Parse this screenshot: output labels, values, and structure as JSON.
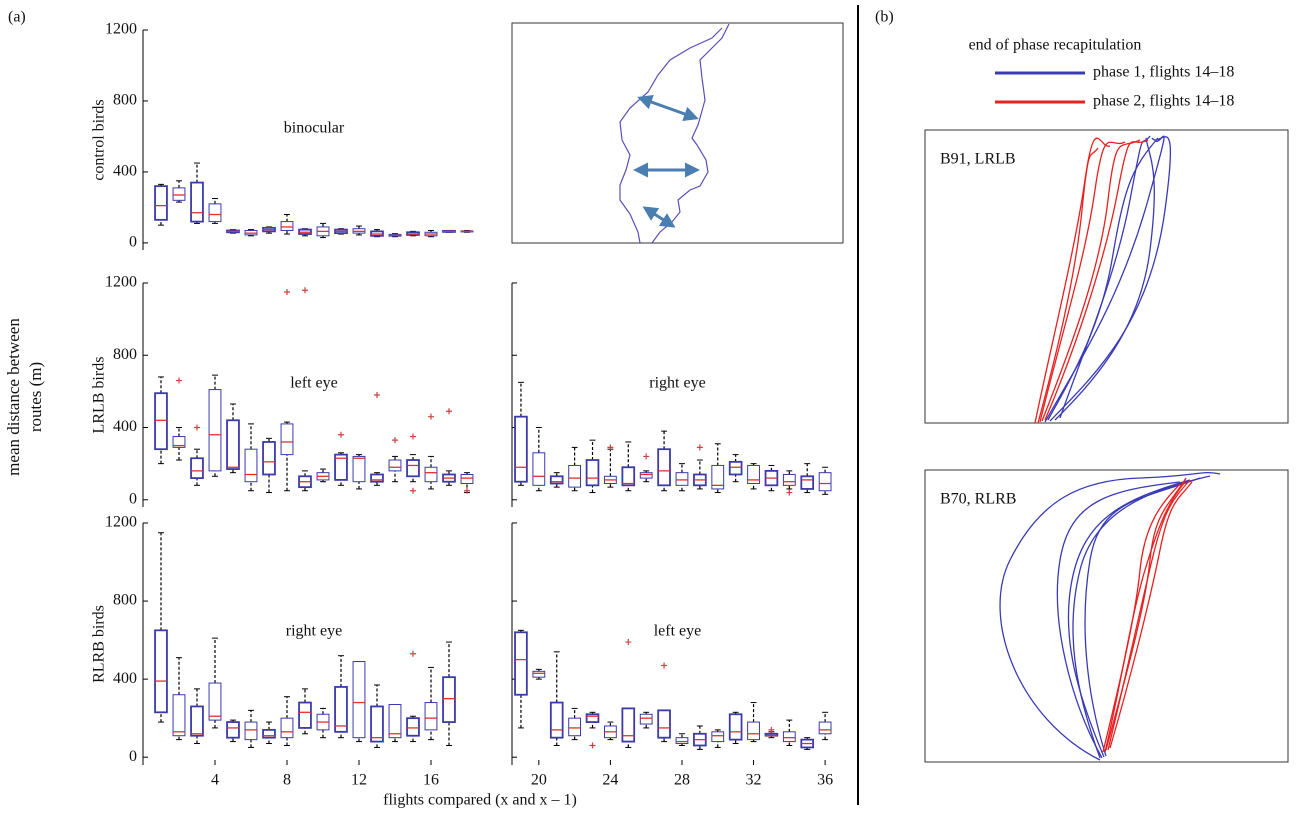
{
  "panel_a_label": "(a)",
  "panel_b_label": "(b)",
  "ylabel": "mean distance between routes (m)",
  "xlabel": "flights compared (x and x – 1)",
  "chart_data": [
    {
      "type": "box",
      "ylabel": "control birds",
      "subtitle": "binocular",
      "x": [
        1,
        2,
        3,
        4,
        5,
        6,
        7,
        8,
        9,
        10,
        11,
        12,
        13,
        14,
        15,
        16,
        17,
        18
      ],
      "whislo": [
        100,
        230,
        110,
        110,
        55,
        40,
        55,
        50,
        40,
        30,
        50,
        45,
        35,
        35,
        40,
        35,
        60,
        60
      ],
      "q1": [
        130,
        240,
        120,
        120,
        60,
        45,
        65,
        70,
        50,
        40,
        55,
        55,
        40,
        38,
        45,
        40,
        62,
        62
      ],
      "med": [
        210,
        270,
        170,
        160,
        65,
        55,
        75,
        90,
        60,
        65,
        65,
        65,
        50,
        42,
        50,
        50,
        65,
        65
      ],
      "q3": [
        320,
        310,
        340,
        220,
        70,
        70,
        85,
        120,
        75,
        90,
        75,
        80,
        65,
        48,
        60,
        60,
        68,
        68
      ],
      "whishi": [
        330,
        350,
        450,
        250,
        75,
        75,
        90,
        160,
        80,
        110,
        80,
        95,
        75,
        52,
        65,
        70,
        70,
        70
      ],
      "fliers": {
        "x": [],
        "values": []
      },
      "xlim": [
        0,
        19
      ],
      "ylim": [
        -40,
        1200
      ],
      "yticks": [
        0,
        400,
        800,
        1200
      ],
      "show_ytick_labels": true,
      "box_color": "#3a3aaa",
      "median_color": "#e03030",
      "whisker_color": "#000000",
      "flier_color": "#d04040"
    },
    {
      "type": "box",
      "ylabel": "LRLB birds",
      "subtitle": "left eye",
      "x": [
        1,
        2,
        3,
        4,
        5,
        6,
        7,
        8,
        9,
        10,
        11,
        12,
        13,
        14,
        15,
        16,
        17,
        18
      ],
      "whislo": [
        200,
        220,
        80,
        130,
        150,
        50,
        40,
        50,
        50,
        100,
        80,
        60,
        80,
        100,
        100,
        60,
        80,
        40
      ],
      "q1": [
        280,
        290,
        120,
        160,
        170,
        100,
        140,
        250,
        70,
        110,
        110,
        100,
        100,
        160,
        130,
        100,
        100,
        90
      ],
      "med": [
        440,
        300,
        160,
        360,
        180,
        140,
        210,
        320,
        100,
        130,
        230,
        230,
        110,
        180,
        190,
        150,
        120,
        120
      ],
      "q3": [
        590,
        350,
        230,
        610,
        440,
        280,
        320,
        420,
        130,
        150,
        250,
        240,
        140,
        220,
        220,
        180,
        140,
        140
      ],
      "whishi": [
        680,
        400,
        280,
        690,
        530,
        420,
        340,
        430,
        160,
        170,
        260,
        250,
        150,
        240,
        250,
        240,
        160,
        150
      ],
      "fliers": {
        "x": [
          3,
          2,
          8,
          9,
          11,
          13,
          14,
          15,
          15,
          16,
          17,
          18
        ],
        "values": [
          400,
          660,
          1150,
          1160,
          360,
          580,
          330,
          350,
          50,
          460,
          490,
          50
        ]
      },
      "xlim": [
        0,
        19
      ],
      "ylim": [
        -40,
        1200
      ],
      "yticks": [
        0,
        400,
        800,
        1200
      ],
      "show_ytick_labels": true,
      "box_color": "#3a3aaa",
      "median_color": "#e03030",
      "whisker_color": "#000000",
      "flier_color": "#d04040"
    },
    {
      "type": "box",
      "subtitle": "right eye",
      "x": [
        19,
        20,
        21,
        22,
        23,
        24,
        25,
        26,
        27,
        28,
        29,
        30,
        31,
        32,
        33,
        34,
        35,
        36
      ],
      "whislo": [
        80,
        50,
        70,
        50,
        40,
        70,
        50,
        100,
        50,
        50,
        60,
        40,
        100,
        60,
        50,
        60,
        40,
        30
      ],
      "q1": [
        100,
        80,
        90,
        70,
        80,
        90,
        80,
        120,
        80,
        80,
        80,
        60,
        140,
        90,
        80,
        80,
        60,
        50
      ],
      "med": [
        180,
        130,
        100,
        120,
        120,
        110,
        90,
        140,
        160,
        110,
        110,
        80,
        180,
        110,
        120,
        100,
        110,
        90
      ],
      "q3": [
        460,
        260,
        130,
        190,
        220,
        130,
        180,
        150,
        280,
        150,
        140,
        190,
        210,
        190,
        160,
        140,
        130,
        150
      ],
      "whishi": [
        650,
        400,
        150,
        290,
        330,
        280,
        320,
        160,
        380,
        200,
        220,
        310,
        250,
        200,
        190,
        160,
        200,
        180
      ],
      "fliers": {
        "x": [
          24,
          26,
          29,
          34
        ],
        "values": [
          290,
          240,
          290,
          40
        ]
      },
      "xlim": [
        18.5,
        37
      ],
      "ylim": [
        -40,
        1200
      ],
      "yticks": [
        0,
        400,
        800,
        1200
      ],
      "show_ytick_labels": false,
      "box_color": "#3a3aaa",
      "median_color": "#e03030",
      "whisker_color": "#000000",
      "flier_color": "#d04040"
    },
    {
      "type": "box",
      "ylabel": "RLRB birds",
      "subtitle": "right eye",
      "x": [
        1,
        2,
        3,
        4,
        5,
        6,
        7,
        8,
        9,
        10,
        11,
        12,
        13,
        14,
        15,
        16,
        17
      ],
      "whislo": [
        180,
        90,
        70,
        150,
        80,
        50,
        70,
        60,
        120,
        100,
        100,
        80,
        50,
        80,
        80,
        90,
        60
      ],
      "q1": [
        230,
        110,
        110,
        190,
        100,
        90,
        100,
        100,
        150,
        140,
        130,
        100,
        80,
        100,
        110,
        140,
        180
      ],
      "med": [
        390,
        130,
        120,
        210,
        150,
        140,
        110,
        130,
        230,
        180,
        160,
        280,
        100,
        120,
        150,
        200,
        300
      ],
      "q3": [
        650,
        320,
        260,
        380,
        180,
        180,
        140,
        200,
        280,
        220,
        360,
        490,
        260,
        270,
        200,
        280,
        410
      ],
      "whishi": [
        1150,
        510,
        350,
        610,
        190,
        240,
        180,
        310,
        350,
        250,
        520,
        490,
        370,
        270,
        210,
        460,
        590
      ],
      "fliers": {
        "x": [
          15
        ],
        "values": [
          530
        ]
      },
      "xlim": [
        0,
        19
      ],
      "ylim": [
        -40,
        1200
      ],
      "yticks": [
        0,
        400,
        800,
        1200
      ],
      "show_ytick_labels": true,
      "xticks": [
        4,
        8,
        12,
        16
      ],
      "box_color": "#3a3aaa",
      "median_color": "#e03030",
      "whisker_color": "#000000",
      "flier_color": "#d04040"
    },
    {
      "type": "box",
      "subtitle": "left eye",
      "x": [
        19,
        20,
        21,
        22,
        23,
        24,
        25,
        26,
        27,
        28,
        29,
        30,
        31,
        32,
        33,
        34,
        35,
        36
      ],
      "whislo": [
        150,
        400,
        60,
        90,
        150,
        90,
        50,
        150,
        80,
        60,
        40,
        50,
        70,
        80,
        100,
        60,
        40,
        90
      ],
      "q1": [
        320,
        410,
        100,
        110,
        180,
        100,
        80,
        170,
        100,
        70,
        60,
        80,
        90,
        90,
        110,
        80,
        50,
        120
      ],
      "med": [
        500,
        430,
        140,
        150,
        210,
        130,
        110,
        200,
        150,
        80,
        90,
        110,
        130,
        120,
        110,
        100,
        70,
        140
      ],
      "q3": [
        640,
        440,
        280,
        200,
        220,
        160,
        250,
        220,
        240,
        100,
        120,
        130,
        220,
        180,
        120,
        130,
        90,
        180
      ],
      "whishi": [
        650,
        450,
        540,
        250,
        230,
        180,
        250,
        230,
        240,
        120,
        160,
        140,
        230,
        280,
        130,
        190,
        100,
        230
      ],
      "fliers": {
        "x": [
          23,
          25,
          27,
          33
        ],
        "values": [
          60,
          590,
          470,
          140
        ]
      },
      "xlim": [
        18.5,
        37
      ],
      "ylim": [
        -40,
        1200
      ],
      "yticks": [
        0,
        400,
        800,
        1200
      ],
      "show_ytick_labels": false,
      "xticks": [
        20,
        24,
        28,
        32,
        36
      ],
      "box_color": "#3a3aaa",
      "median_color": "#e03030",
      "whisker_color": "#000000",
      "flier_color": "#d04040"
    }
  ],
  "route_panel": {
    "title": "end of phase recapitulation",
    "series": [
      {
        "name": "phase 1, flights 14–18",
        "color": "#3a3ab8"
      },
      {
        "name": "phase 2, flights 14–18",
        "color": "#e82020"
      }
    ],
    "maps": [
      "B91, LRLB",
      "B70, RLRB"
    ]
  }
}
